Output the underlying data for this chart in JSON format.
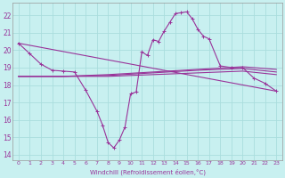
{
  "xlabel": "Windchill (Refroidissement éolien,°C)",
  "background_color": "#c8f0f0",
  "grid_color": "#aadddd",
  "line_color": "#993399",
  "xlim": [
    -0.5,
    23.5
  ],
  "ylim": [
    13.7,
    22.7
  ],
  "yticks": [
    14,
    15,
    16,
    17,
    18,
    19,
    20,
    21,
    22
  ],
  "xticks": [
    0,
    1,
    2,
    3,
    4,
    5,
    6,
    7,
    8,
    9,
    10,
    11,
    12,
    13,
    14,
    15,
    16,
    17,
    18,
    19,
    20,
    21,
    22,
    23
  ],
  "series1_x": [
    0,
    1,
    2,
    3,
    4,
    5,
    6,
    7,
    7.5,
    8,
    8.5,
    9,
    9.5,
    10,
    10.5,
    11,
    11.5,
    12,
    12.5,
    13,
    13.5,
    14,
    14.5,
    15,
    15.5,
    16,
    16.5,
    17,
    18,
    19,
    20,
    21,
    22,
    23
  ],
  "series1_y": [
    20.4,
    19.8,
    19.2,
    18.85,
    18.8,
    18.75,
    17.7,
    16.5,
    15.7,
    14.7,
    14.4,
    14.85,
    15.6,
    17.5,
    17.6,
    19.9,
    19.7,
    20.6,
    20.5,
    21.1,
    21.6,
    22.1,
    22.15,
    22.2,
    21.8,
    21.2,
    20.8,
    20.65,
    19.1,
    19.0,
    19.0,
    18.4,
    18.1,
    17.65
  ],
  "series2_x": [
    0,
    23
  ],
  "series2_y": [
    20.4,
    17.65
  ],
  "series3_x": [
    0,
    4,
    8,
    12,
    16,
    20,
    23
  ],
  "series3_y": [
    18.5,
    18.5,
    18.5,
    18.6,
    18.7,
    18.8,
    18.6
  ],
  "series4_x": [
    0,
    4,
    8,
    12,
    16,
    20,
    23
  ],
  "series4_y": [
    18.5,
    18.5,
    18.55,
    18.7,
    18.85,
    18.95,
    18.75
  ],
  "series5_x": [
    0,
    4,
    8,
    12,
    16,
    20,
    23
  ],
  "series5_y": [
    18.5,
    18.5,
    18.6,
    18.75,
    18.9,
    19.05,
    18.9
  ]
}
